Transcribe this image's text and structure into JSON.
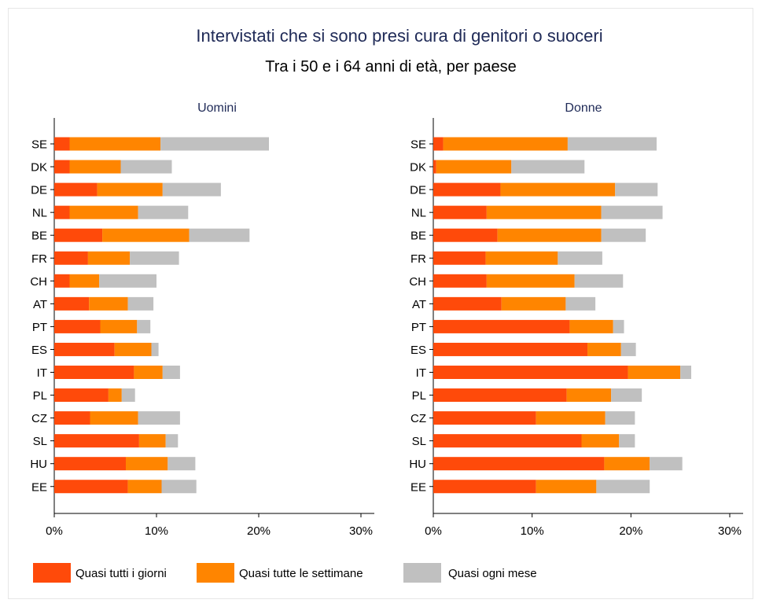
{
  "chart_data": {
    "type": "bar",
    "orientation": "horizontal",
    "stacked": true,
    "title": "Intervistati che si sono presi cura di genitori o suoceri",
    "subtitle": "Tra i 50 e i 64 anni di età, per paese",
    "categories": [
      "SE",
      "DK",
      "DE",
      "NL",
      "BE",
      "FR",
      "CH",
      "AT",
      "PT",
      "ES",
      "IT",
      "PL",
      "CZ",
      "SL",
      "HU",
      "EE"
    ],
    "xlim": [
      0,
      30
    ],
    "xticks": [
      "0%",
      "10%",
      "20%",
      "30%"
    ],
    "legend_position": "bottom",
    "grid": false,
    "colors": {
      "Quasi tutti i giorni": "#ff4a0a",
      "Quasi tutte le settimane": "#ff8500",
      "Quasi ogni mese": "#c0c0c0"
    },
    "panels": [
      {
        "title": "Uomini",
        "series": [
          {
            "name": "Quasi tutti i giorni",
            "values": [
              1.5,
              1.5,
              4.2,
              1.5,
              4.7,
              3.3,
              1.5,
              3.4,
              4.5,
              5.9,
              7.8,
              5.3,
              3.5,
              8.3,
              7.0,
              7.2
            ]
          },
          {
            "name": "Quasi tutte le settimane",
            "values": [
              8.9,
              5.0,
              6.4,
              6.7,
              8.5,
              4.1,
              2.9,
              3.8,
              3.6,
              3.6,
              2.8,
              1.3,
              4.7,
              2.6,
              4.1,
              3.3
            ]
          },
          {
            "name": "Quasi ogni mese",
            "values": [
              10.6,
              5.0,
              5.7,
              4.9,
              5.9,
              4.8,
              5.6,
              2.5,
              1.3,
              0.7,
              1.7,
              1.3,
              4.1,
              1.2,
              2.7,
              3.4
            ]
          }
        ]
      },
      {
        "title": "Donne",
        "series": [
          {
            "name": "Quasi tutti i giorni",
            "values": [
              1.0,
              0.3,
              6.8,
              5.4,
              6.5,
              5.3,
              5.4,
              6.9,
              13.8,
              15.6,
              19.7,
              13.5,
              10.4,
              15.0,
              17.3,
              10.4
            ]
          },
          {
            "name": "Quasi tutte le settimane",
            "values": [
              12.6,
              7.6,
              11.6,
              11.6,
              10.5,
              7.3,
              8.9,
              6.5,
              4.4,
              3.4,
              5.3,
              4.5,
              7.0,
              3.8,
              4.6,
              6.1
            ]
          },
          {
            "name": "Quasi ogni mese",
            "values": [
              9.0,
              7.4,
              4.3,
              6.2,
              4.5,
              4.5,
              4.9,
              3.0,
              1.1,
              1.5,
              1.1,
              3.1,
              3.0,
              1.6,
              3.3,
              5.4
            ]
          }
        ]
      }
    ]
  }
}
